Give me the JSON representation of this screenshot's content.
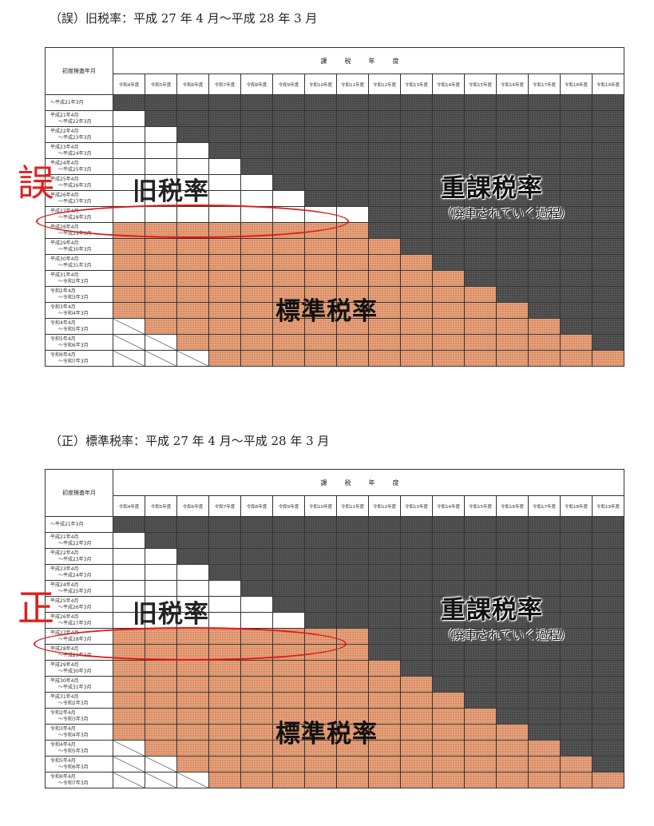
{
  "top": {
    "caption": "（誤）旧税率：平成 27 年 4 月～平成 28 年 3 月",
    "mark": "誤",
    "legend_old": "旧税率",
    "legend_heavy": "重課税率",
    "legend_heavy_note": "（廃車されていく過程）",
    "legend_std": "標準税率"
  },
  "bottom": {
    "caption": "（正）標準税率：平成 27 年 4 月～平成 28 年 3 月",
    "mark": "正",
    "legend_old": "旧税率",
    "legend_heavy": "重課税率",
    "legend_heavy_note": "（廃車されていく過程）",
    "legend_std": "標準税率"
  },
  "table": {
    "corner_label": "初度検査年月",
    "header_label": "課税年度",
    "years": [
      "令和4年度",
      "令和5年度",
      "令和6年度",
      "令和7年度",
      "令和8年度",
      "令和9年度",
      "令和10年度",
      "令和11年度",
      "令和12年度",
      "令和13年度",
      "令和14年度",
      "令和15年度",
      "令和16年度",
      "令和17年度",
      "令和18年度",
      "令和19年度"
    ],
    "rows": [
      "～平成21年3月",
      "平成21年4月 ～平成22年3月",
      "平成22年4月 ～平成23年3月",
      "平成23年4月 ～平成24年3月",
      "平成24年4月 ～平成25年3月",
      "平成25年4月 ～平成26年3月",
      "平成26年4月 ～平成27年3月",
      "平成27年4月 ～平成28年3月",
      "平成28年4月 ～平成29年3月",
      "平成29年4月 ～平成30年3月",
      "平成30年4月 ～平成31年3月",
      "平成31年4月 ～令和2年3月",
      "令和2年4月 ～令和3年3月",
      "令和3年4月 ～令和4年3月",
      "令和4年4月 ～令和5年3月",
      "令和5年4月 ～令和6年3月",
      "令和6年4月 ～令和7年3月"
    ]
  },
  "colors": {
    "old": "#ffffff",
    "heavy": "#555555",
    "standard": "#e8a27c",
    "mark": "#e02020"
  }
}
